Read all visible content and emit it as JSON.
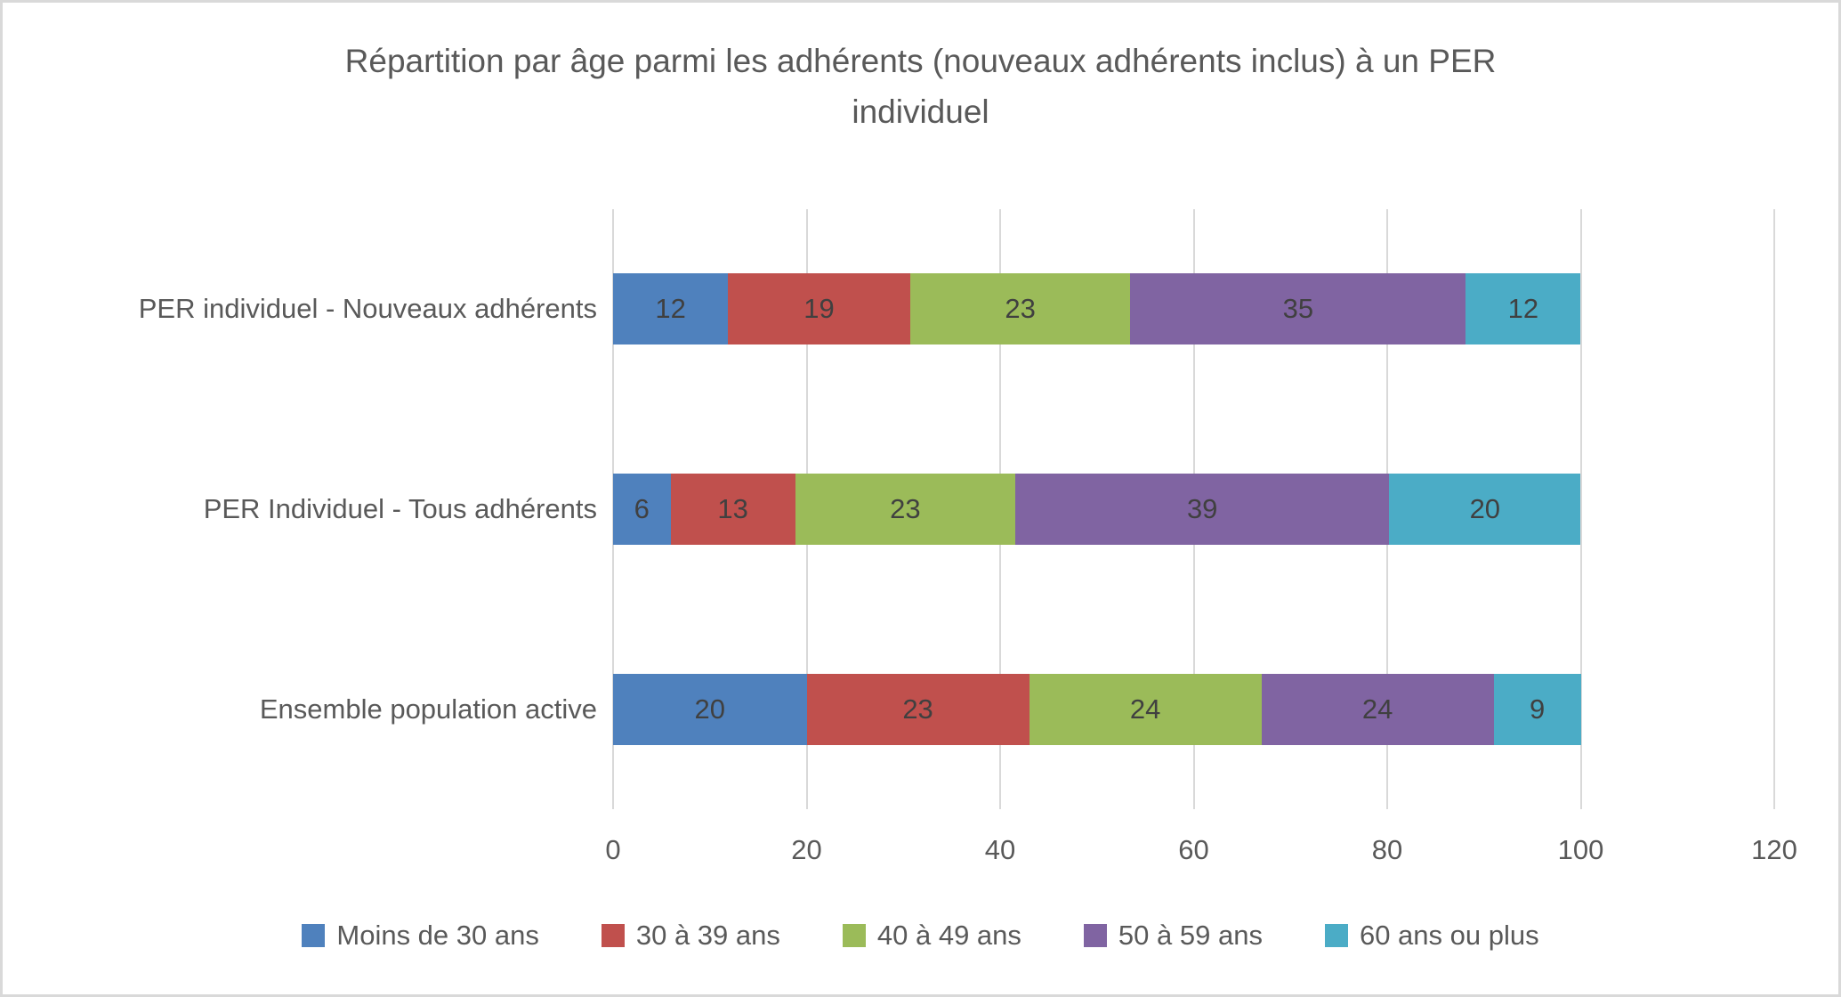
{
  "chart_data": {
    "type": "bar",
    "orientation": "horizontal",
    "stacked": true,
    "title": "Répartition par âge parmi les adhérents (nouveaux adhérents inclus) à un PER\nindividuel",
    "categories": [
      "PER individuel - Nouveaux adhérents",
      "PER Individuel - Tous adhérents",
      "Ensemble population active"
    ],
    "series": [
      {
        "name": "Moins de 30 ans",
        "color": "#4F81BD",
        "values": [
          12,
          6,
          20
        ]
      },
      {
        "name": "30 à 39 ans",
        "color": "#C0504D",
        "values": [
          19,
          13,
          23
        ]
      },
      {
        "name": "40 à 49 ans",
        "color": "#9BBB59",
        "values": [
          23,
          23,
          24
        ]
      },
      {
        "name": "50 à 59 ans",
        "color": "#8064A2",
        "values": [
          35,
          39,
          24
        ]
      },
      {
        "name": "60 ans ou plus",
        "color": "#4BACC6",
        "values": [
          12,
          20,
          9
        ]
      }
    ],
    "x_axis": {
      "min": 0,
      "max": 120,
      "step": 20,
      "ticks": [
        0,
        20,
        40,
        60,
        80,
        100,
        120
      ]
    },
    "legend_position": "bottom",
    "grid": true,
    "text_color": "#595959",
    "data_label_color": "#404040",
    "gridline_color": "#D9D9D9"
  }
}
